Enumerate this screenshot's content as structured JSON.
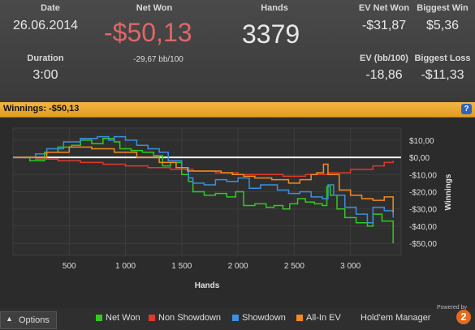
{
  "stats": {
    "date": {
      "label": "Date",
      "value": "26.06.2014"
    },
    "net_won": {
      "label": "Net Won",
      "value": "-$50,13",
      "sub": "-29,67 bb/100"
    },
    "hands": {
      "label": "Hands",
      "value": "3379"
    },
    "ev_net_won": {
      "label": "EV Net Won",
      "value": "-$31,87"
    },
    "biggest_win": {
      "label": "Biggest Win",
      "value": "$5,36"
    },
    "duration": {
      "label": "Duration",
      "value": "3:00"
    },
    "ev_bb100": {
      "label": "EV (bb/100)",
      "value": "-18,86"
    },
    "biggest_loss": {
      "label": "Biggest Loss",
      "value": "-$11,33"
    }
  },
  "winnings_bar": {
    "text": "Winnings: -$50,13",
    "help": "?"
  },
  "colors": {
    "net_won": "#2ecc1e",
    "non_showdown": "#e0392b",
    "showdown": "#3a8fe0",
    "allin_ev": "#f28c1e",
    "negative": "#e06666",
    "orange_bar": "#e39d22"
  },
  "chart_data": {
    "type": "line",
    "xlabel": "Hands",
    "ylabel": "Winnings",
    "xlim": [
      0,
      3450
    ],
    "ylim": [
      -57,
      17
    ],
    "x_ticks": [
      500,
      1000,
      1500,
      2000,
      2500,
      3000
    ],
    "x_tick_labels": [
      "500",
      "1 000",
      "1 500",
      "2 000",
      "2 500",
      "3 000"
    ],
    "y_ticks": [
      10,
      0,
      -10,
      -20,
      -30,
      -40,
      -50
    ],
    "y_tick_labels": [
      "$10,00",
      "$0,00",
      "-$10,00",
      "-$20,00",
      "-$30,00",
      "-$40,00",
      "-$50,00"
    ],
    "grid": true,
    "series": [
      {
        "name": "Net Won",
        "color": "#2ecc1e",
        "points": [
          [
            0,
            0
          ],
          [
            150,
            -2
          ],
          [
            280,
            3
          ],
          [
            400,
            6
          ],
          [
            520,
            7
          ],
          [
            600,
            10
          ],
          [
            700,
            8
          ],
          [
            800,
            11
          ],
          [
            900,
            9
          ],
          [
            950,
            5
          ],
          [
            1050,
            4
          ],
          [
            1150,
            3
          ],
          [
            1250,
            1
          ],
          [
            1330,
            -5
          ],
          [
            1400,
            -3
          ],
          [
            1500,
            -10
          ],
          [
            1560,
            -14
          ],
          [
            1600,
            -20
          ],
          [
            1700,
            -22
          ],
          [
            1800,
            -21
          ],
          [
            1900,
            -23
          ],
          [
            1980,
            -20
          ],
          [
            2050,
            -28
          ],
          [
            2150,
            -27
          ],
          [
            2250,
            -29
          ],
          [
            2320,
            -28
          ],
          [
            2400,
            -30
          ],
          [
            2460,
            -27
          ],
          [
            2530,
            -24
          ],
          [
            2600,
            -26
          ],
          [
            2680,
            -27
          ],
          [
            2750,
            -28
          ],
          [
            2790,
            -17
          ],
          [
            2820,
            -22
          ],
          [
            2880,
            -30
          ],
          [
            2950,
            -35
          ],
          [
            3050,
            -38
          ],
          [
            3150,
            -40
          ],
          [
            3200,
            -33
          ],
          [
            3280,
            -37
          ],
          [
            3379,
            -50
          ]
        ]
      },
      {
        "name": "Non Showdown",
        "color": "#e0392b",
        "points": [
          [
            0,
            0
          ],
          [
            200,
            -1
          ],
          [
            400,
            -2
          ],
          [
            600,
            -3
          ],
          [
            800,
            -4
          ],
          [
            1000,
            -5
          ],
          [
            1200,
            -6
          ],
          [
            1400,
            -7
          ],
          [
            1600,
            -8
          ],
          [
            1800,
            -9
          ],
          [
            2000,
            -10
          ],
          [
            2200,
            -10
          ],
          [
            2400,
            -11
          ],
          [
            2600,
            -10
          ],
          [
            2800,
            -9
          ],
          [
            3000,
            -7
          ],
          [
            3200,
            -5
          ],
          [
            3300,
            -3
          ],
          [
            3379,
            -2
          ]
        ]
      },
      {
        "name": "Showdown",
        "color": "#3a8fe0",
        "points": [
          [
            0,
            0
          ],
          [
            200,
            2
          ],
          [
            300,
            5
          ],
          [
            450,
            9
          ],
          [
            600,
            11
          ],
          [
            750,
            12
          ],
          [
            850,
            10
          ],
          [
            900,
            12
          ],
          [
            1000,
            10
          ],
          [
            1100,
            7
          ],
          [
            1200,
            5
          ],
          [
            1300,
            3
          ],
          [
            1380,
            -2
          ],
          [
            1500,
            -6
          ],
          [
            1560,
            -12
          ],
          [
            1600,
            -15
          ],
          [
            1700,
            -16
          ],
          [
            1800,
            -13
          ],
          [
            1900,
            -14
          ],
          [
            2000,
            -12
          ],
          [
            2100,
            -18
          ],
          [
            2200,
            -16
          ],
          [
            2350,
            -19
          ],
          [
            2450,
            -21
          ],
          [
            2550,
            -20
          ],
          [
            2650,
            -23
          ],
          [
            2750,
            -24
          ],
          [
            2800,
            -16
          ],
          [
            2850,
            -22
          ],
          [
            2950,
            -29
          ],
          [
            3050,
            -33
          ],
          [
            3150,
            -38
          ],
          [
            3200,
            -29
          ],
          [
            3300,
            -31
          ],
          [
            3379,
            -35
          ]
        ]
      },
      {
        "name": "All-In EV",
        "color": "#f28c1e",
        "points": [
          [
            0,
            0
          ],
          [
            300,
            3
          ],
          [
            500,
            6
          ],
          [
            700,
            5
          ],
          [
            900,
            3
          ],
          [
            1100,
            0
          ],
          [
            1300,
            -3
          ],
          [
            1450,
            -6
          ],
          [
            1550,
            -8
          ],
          [
            1700,
            -8
          ],
          [
            1850,
            -9
          ],
          [
            1950,
            -10
          ],
          [
            2050,
            -11
          ],
          [
            2150,
            -12
          ],
          [
            2300,
            -13
          ],
          [
            2450,
            -15
          ],
          [
            2550,
            -13
          ],
          [
            2650,
            -10
          ],
          [
            2700,
            -9
          ],
          [
            2760,
            -4
          ],
          [
            2800,
            -10
          ],
          [
            2900,
            -19
          ],
          [
            3000,
            -22
          ],
          [
            3100,
            -24
          ],
          [
            3200,
            -25
          ],
          [
            3300,
            -23
          ],
          [
            3379,
            -32
          ]
        ]
      }
    ]
  },
  "footer": {
    "options_label": "Options",
    "legend": [
      {
        "label": "Net Won",
        "color": "#2ecc1e"
      },
      {
        "label": "Non Showdown",
        "color": "#e0392b"
      },
      {
        "label": "Showdown",
        "color": "#3a8fe0"
      },
      {
        "label": "All-In EV",
        "color": "#f28c1e"
      }
    ],
    "powered_by": "Powered by",
    "brand": "Hold'em Manager",
    "brand_version": "2"
  }
}
